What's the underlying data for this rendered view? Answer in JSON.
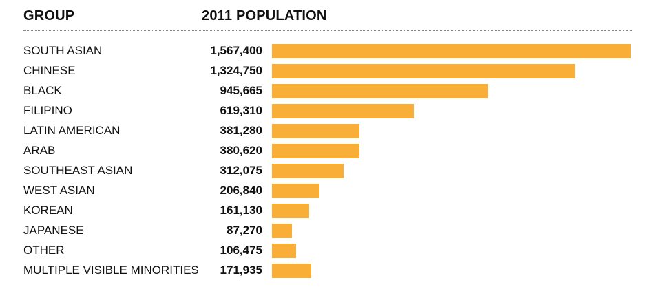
{
  "header": {
    "group_label": "GROUP",
    "population_label": "2011 POPULATION"
  },
  "colors": {
    "bar": "#f9ae38"
  },
  "chart_data": {
    "type": "bar",
    "orientation": "horizontal",
    "title": "",
    "xlabel": "2011 POPULATION",
    "ylabel": "GROUP",
    "grid": false,
    "max_value": 1567400,
    "categories": [
      "SOUTH ASIAN",
      "CHINESE",
      "BLACK",
      "FILIPINO",
      "LATIN AMERICAN",
      "ARAB",
      "SOUTHEAST ASIAN",
      "WEST ASIAN",
      "KOREAN",
      "JAPANESE",
      "OTHER",
      "MULTIPLE VISIBLE MINORITIES"
    ],
    "values": [
      1567400,
      1324750,
      945665,
      619310,
      381280,
      380620,
      312075,
      206840,
      161130,
      87270,
      106475,
      171935
    ],
    "value_labels": [
      "1,567,400",
      "1,324,750",
      "945,665",
      "619,310",
      "381,280",
      "380,620",
      "312,075",
      "206,840",
      "161,130",
      "87,270",
      "106,475",
      "171,935"
    ]
  }
}
